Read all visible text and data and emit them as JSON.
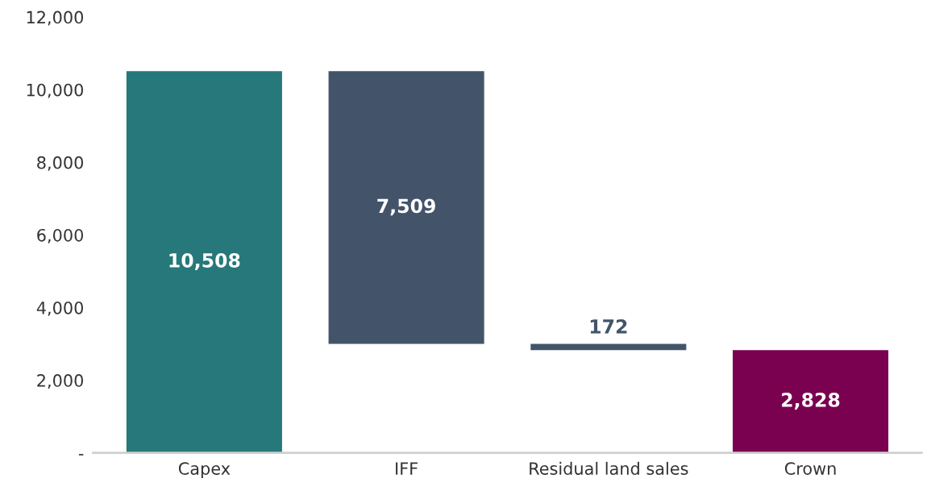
{
  "chart_data": {
    "type": "bar",
    "categories": [
      "Capex",
      "IFF",
      "Residual land sales",
      "Crown"
    ],
    "values": [
      10508,
      7509,
      172,
      2828
    ],
    "base": [
      0,
      2999,
      2828,
      0
    ],
    "colors": [
      "#27787a",
      "#43546a",
      "#43546a",
      "#7a0050"
    ],
    "value_labels": [
      "10,508",
      "7,509",
      "172",
      "2,828"
    ],
    "ylim": [
      0,
      12000
    ],
    "yticks": [
      {
        "value": 0,
        "label": "-"
      },
      {
        "value": 2000,
        "label": "2,000"
      },
      {
        "value": 4000,
        "label": "4,000"
      },
      {
        "value": 6000,
        "label": "6,000"
      },
      {
        "value": 8000,
        "label": "8,000"
      },
      {
        "value": 10000,
        "label": "10,000"
      },
      {
        "value": 12000,
        "label": "12,000"
      }
    ],
    "grid": false,
    "legend": false
  }
}
